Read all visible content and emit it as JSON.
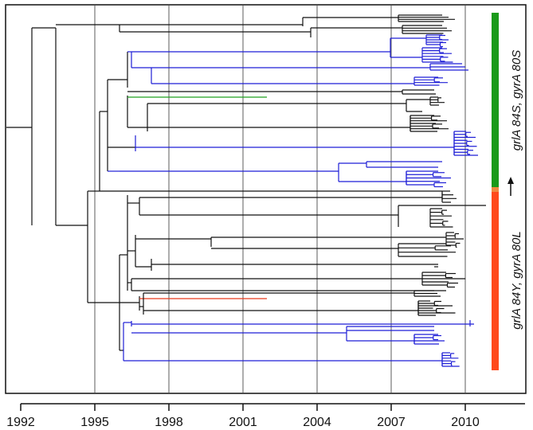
{
  "axis": {
    "ticks": [
      1992,
      1995,
      1998,
      2001,
      2004,
      2007,
      2010
    ],
    "range": [
      1992,
      2012.6
    ]
  },
  "vertical_grid_years": [
    1995,
    1998,
    2001,
    2004,
    2007,
    2010
  ],
  "colors": {
    "default_branch": "#111111",
    "blue_clade": "#1f1fd6",
    "green_clade": "#1ea01e",
    "red_clade": "#e8381a",
    "green_bar": "#1a9a1a",
    "red_bar": "#ff4a1c",
    "junction": "#f08a40"
  },
  "clade_bars": [
    {
      "label_prefix": "grlA",
      "label_suffix": " 84S, gyrA 80S",
      "color": "green_bar"
    },
    {
      "label_prefix": "grlA",
      "label_suffix": " 84Y, gyrA 80L",
      "color": "red_bar"
    }
  ],
  "arrow": {
    "direction": "up",
    "color": "#111111"
  },
  "tree": {
    "root_year": 1992.0,
    "note_marker": "none"
  }
}
